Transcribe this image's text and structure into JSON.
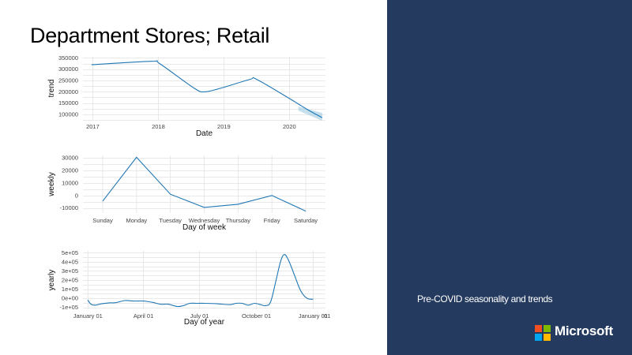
{
  "slide": {
    "title": "Department Stores; Retail",
    "subtitle": "Pre-COVID seasonality and trends",
    "brand": "Microsoft"
  },
  "colors": {
    "panel": "#243a5e",
    "line": "#1f77b4",
    "logo_red": "#f25022",
    "logo_green": "#7fba00",
    "logo_blue": "#00a4ef",
    "logo_yellow": "#ffb900"
  },
  "chart_data": [
    {
      "type": "line",
      "ylabel": "trend",
      "xlabel": "Date",
      "x": [
        2016.98,
        2017.9,
        2018.02,
        2018.55,
        2018.72,
        2019.0,
        2019.4,
        2019.5,
        2020.0,
        2020.28,
        2020.5
      ],
      "y": [
        320000,
        335000,
        325000,
        215000,
        200000,
        220000,
        255000,
        255000,
        170000,
        120000,
        85000
      ],
      "xlim": [
        2016.85,
        2020.55
      ],
      "ylim": [
        75000,
        355000
      ],
      "xticks": [
        2017,
        2018,
        2019,
        2020
      ],
      "xtick_labels": [
        "2017",
        "2018",
        "2019",
        "2020"
      ],
      "yticks": [
        100000,
        150000,
        200000,
        250000,
        300000,
        350000
      ],
      "ytick_labels": [
        "100000",
        "150000",
        "200000",
        "250000",
        "300000",
        "350000"
      ],
      "uncertainty_band": true,
      "grid": true
    },
    {
      "type": "line",
      "ylabel": "weekly",
      "xlabel": "Day of week",
      "categories": [
        "Sunday",
        "Monday",
        "Tuesday",
        "Wednesday",
        "Thursday",
        "Friday",
        "Saturday"
      ],
      "values": [
        -4500,
        30500,
        1000,
        -9500,
        -7000,
        0,
        -12500
      ],
      "ylim": [
        -14000,
        32000
      ],
      "yticks": [
        -10000,
        0,
        10000,
        20000,
        30000
      ],
      "ytick_labels": [
        "-10000",
        "0",
        "10000",
        "20000",
        "30000"
      ],
      "grid": true
    },
    {
      "type": "line",
      "ylabel": "yearly",
      "xlabel": "Day of year",
      "x": [
        0,
        5,
        12,
        22,
        35,
        45,
        60,
        75,
        90,
        105,
        118,
        130,
        145,
        155,
        165,
        178,
        190,
        210,
        230,
        240,
        250,
        260,
        270,
        280,
        288,
        296,
        305,
        312,
        318,
        325,
        335,
        345,
        355,
        365
      ],
      "y": [
        -20000,
        -65000,
        -75000,
        -60000,
        -50000,
        -48000,
        -25000,
        -30000,
        -30000,
        -45000,
        -65000,
        -65000,
        -90000,
        -80000,
        -55000,
        -55000,
        -55000,
        -60000,
        -70000,
        -55000,
        -55000,
        -75000,
        -55000,
        -70000,
        -80000,
        -40000,
        200000,
        400000,
        480000,
        420000,
        250000,
        80000,
        0,
        -10000
      ],
      "xlim": [
        -8,
        385
      ],
      "ylim": [
        -120000,
        520000
      ],
      "xticks": [
        0,
        90,
        181,
        273,
        365,
        388
      ],
      "xtick_labels": [
        "January 01",
        "April 01",
        "July 01",
        "October 01",
        "January 01",
        "01"
      ],
      "yticks": [
        -100000,
        0,
        100000,
        200000,
        300000,
        400000,
        500000
      ],
      "ytick_labels": [
        "-1e+05",
        "0e+00",
        "1e+05",
        "2e+05",
        "3e+05",
        "4e+05",
        "5e+05"
      ],
      "grid": true
    }
  ]
}
